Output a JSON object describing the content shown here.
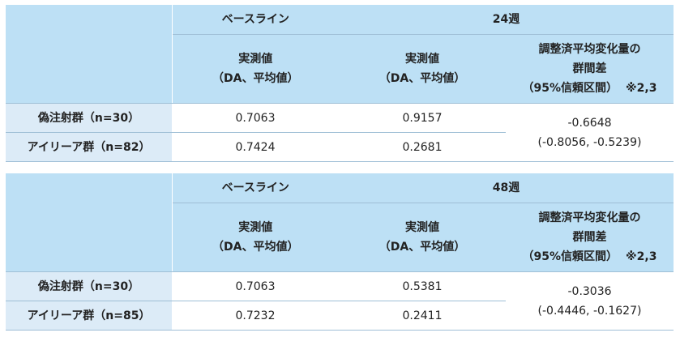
{
  "tables": [
    {
      "baseline_label": "ベースライン",
      "week_label": "24週",
      "col_measured_line1": "実測値",
      "col_measured_line2": "（DA、平均値）",
      "col_diff_line1": "調整済平均変化量の",
      "col_diff_line2": "群間差",
      "col_diff_line3": "（95%信頼区間）",
      "col_diff_note": "※2,3",
      "rows": [
        {
          "label": "偽注射群（n=30）",
          "baseline": "0.7063",
          "week": "0.9157"
        },
        {
          "label": "アイリーア群（n=82）",
          "baseline": "0.7424",
          "week": "0.2681"
        }
      ],
      "diff_value": "-0.6648",
      "diff_ci": "(-0.8056, -0.5239)"
    },
    {
      "baseline_label": "ベースライン",
      "week_label": "48週",
      "col_measured_line1": "実測値",
      "col_measured_line2": "（DA、平均値）",
      "col_diff_line1": "調整済平均変化量の",
      "col_diff_line2": "群間差",
      "col_diff_line3": "（95%信頼区間）",
      "col_diff_note": "※2,3",
      "rows": [
        {
          "label": "偽注射群（n=30）",
          "baseline": "0.7063",
          "week": "0.5381"
        },
        {
          "label": "アイリーア群（n=85）",
          "baseline": "0.7232",
          "week": "0.2411"
        }
      ],
      "diff_value": "-0.3036",
      "diff_ci": "(-0.4446, -0.1627)"
    }
  ]
}
